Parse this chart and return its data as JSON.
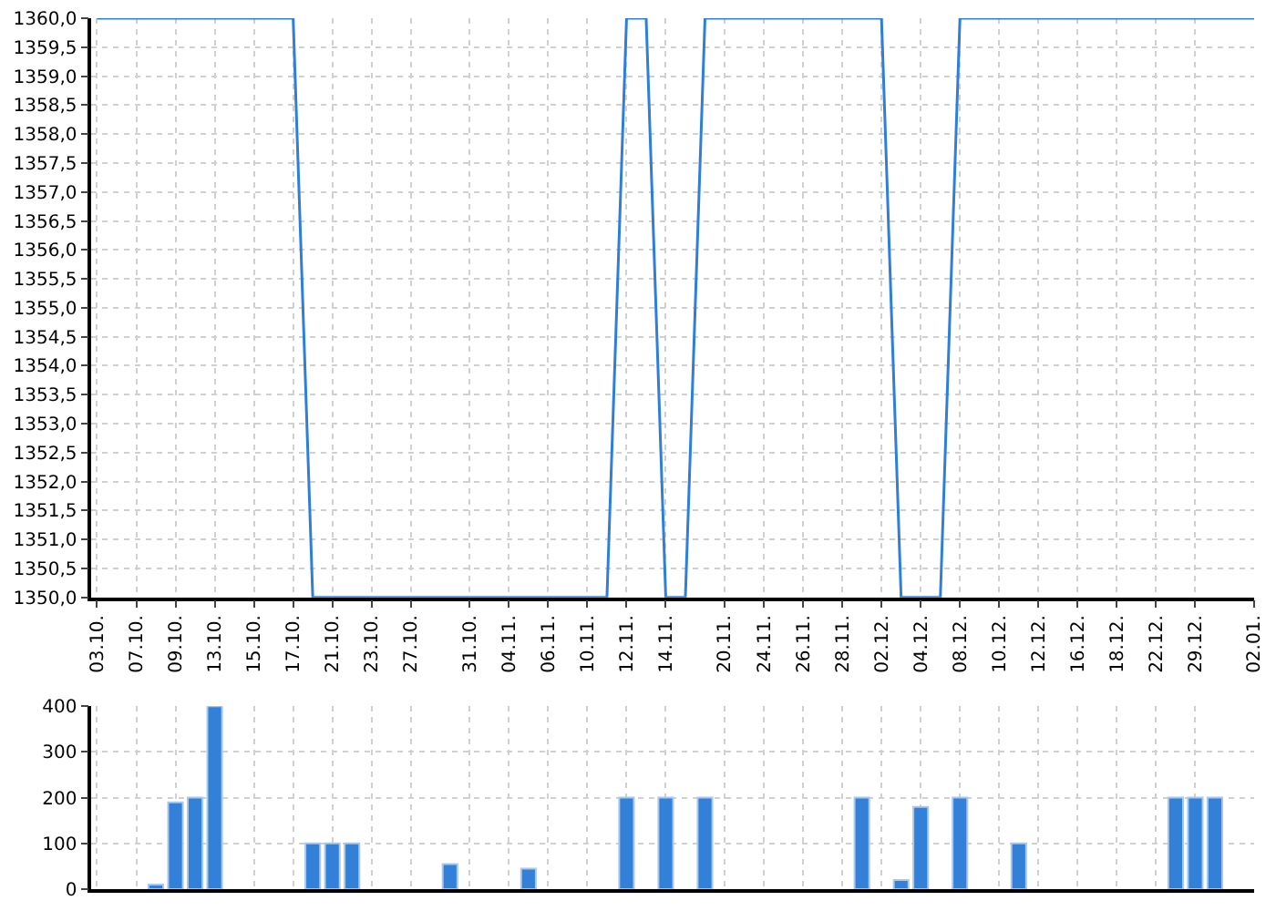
{
  "chart_data": [
    {
      "type": "line",
      "categories": [
        "03.10.",
        null,
        "07.10.",
        null,
        "09.10.",
        null,
        "13.10.",
        null,
        "15.10.",
        null,
        "17.10.",
        null,
        "21.10.",
        null,
        "23.10.",
        null,
        "27.10.",
        null,
        null,
        "31.10.",
        null,
        "04.11.",
        null,
        "06.11.",
        null,
        "10.11.",
        null,
        "12.11.",
        null,
        "14.11.",
        null,
        null,
        "20.11.",
        null,
        "24.11.",
        null,
        "26.11.",
        null,
        "28.11.",
        null,
        "02.12.",
        null,
        "04.12.",
        null,
        "08.12.",
        null,
        "10.12.",
        null,
        "12.12.",
        null,
        "16.12.",
        null,
        "18.12.",
        null,
        "22.12.",
        null,
        "29.12.",
        null,
        null,
        "02.01."
      ],
      "series": [
        {
          "color": "#2f7ed8",
          "values": [
            1360,
            1360,
            1360,
            1360,
            1360,
            1360,
            1360,
            1360,
            1360,
            1360,
            1360,
            1350,
            1350,
            1350,
            1350,
            1350,
            1350,
            1350,
            1350,
            1350,
            1350,
            1350,
            1350,
            1350,
            1350,
            1350,
            1350,
            1360,
            1360,
            1350,
            1350,
            1360,
            1360,
            1360,
            1360,
            1360,
            1360,
            1360,
            1360,
            1360,
            1360,
            1350,
            1350,
            1350,
            1360,
            1360,
            1360,
            1360,
            1360,
            1360,
            1360,
            1360,
            1360,
            1360,
            1360,
            1360,
            1360,
            1360,
            1360,
            1360
          ]
        }
      ],
      "ylim": [
        1350,
        1360
      ],
      "yticks": [
        {
          "value": 1350,
          "label": "1350,0"
        },
        {
          "value": 1350.5,
          "label": "1350,5"
        },
        {
          "value": 1351,
          "label": "1351,0"
        },
        {
          "value": 1351.5,
          "label": "1351,5"
        },
        {
          "value": 1352,
          "label": "1352,0"
        },
        {
          "value": 1352.5,
          "label": "1352,5"
        },
        {
          "value": 1353,
          "label": "1353,0"
        },
        {
          "value": 1353.5,
          "label": "1353,5"
        },
        {
          "value": 1354,
          "label": "1354,0"
        },
        {
          "value": 1354.5,
          "label": "1354,5"
        },
        {
          "value": 1355,
          "label": "1355,0"
        },
        {
          "value": 1355.5,
          "label": "1355,5"
        },
        {
          "value": 1356,
          "label": "1356,0"
        },
        {
          "value": 1356.5,
          "label": "1356,5"
        },
        {
          "value": 1357,
          "label": "1357,0"
        },
        {
          "value": 1357.5,
          "label": "1357,5"
        },
        {
          "value": 1358,
          "label": "1358,0"
        },
        {
          "value": 1358.5,
          "label": "1358,5"
        },
        {
          "value": 1359,
          "label": "1359,0"
        },
        {
          "value": 1359.5,
          "label": "1359,5"
        },
        {
          "value": 1360,
          "label": "1360,0"
        }
      ],
      "grid": true,
      "line_style": "solid",
      "marker": "none"
    },
    {
      "type": "bar",
      "categories": [
        "03.10.",
        null,
        "07.10.",
        null,
        "09.10.",
        null,
        "13.10.",
        null,
        "15.10.",
        null,
        "17.10.",
        null,
        "21.10.",
        null,
        "23.10.",
        null,
        "27.10.",
        null,
        null,
        "31.10.",
        null,
        "04.11.",
        null,
        "06.11.",
        null,
        "10.11.",
        null,
        "12.11.",
        null,
        "14.11.",
        null,
        null,
        "20.11.",
        null,
        "24.11.",
        null,
        "26.11.",
        null,
        "28.11.",
        null,
        "02.12.",
        null,
        "04.12.",
        null,
        "08.12.",
        null,
        "10.12.",
        null,
        "12.12.",
        null,
        "16.12.",
        null,
        "18.12.",
        null,
        "22.12.",
        null,
        "29.12.",
        null,
        null,
        "02.01."
      ],
      "series": [
        {
          "color": "#3380d8",
          "values": [
            null,
            null,
            null,
            10,
            190,
            200,
            400,
            null,
            null,
            null,
            null,
            100,
            100,
            100,
            null,
            null,
            null,
            null,
            55,
            null,
            null,
            null,
            45,
            null,
            null,
            null,
            null,
            200,
            null,
            200,
            null,
            200,
            null,
            null,
            null,
            null,
            null,
            null,
            null,
            200,
            null,
            20,
            180,
            null,
            200,
            null,
            null,
            100,
            null,
            null,
            null,
            null,
            null,
            null,
            null,
            200,
            200,
            200,
            null,
            null
          ]
        }
      ],
      "ylim": [
        0,
        400
      ],
      "yticks": [
        0,
        100,
        200,
        300,
        400
      ],
      "grid": true,
      "tick_labels": "y"
    }
  ]
}
